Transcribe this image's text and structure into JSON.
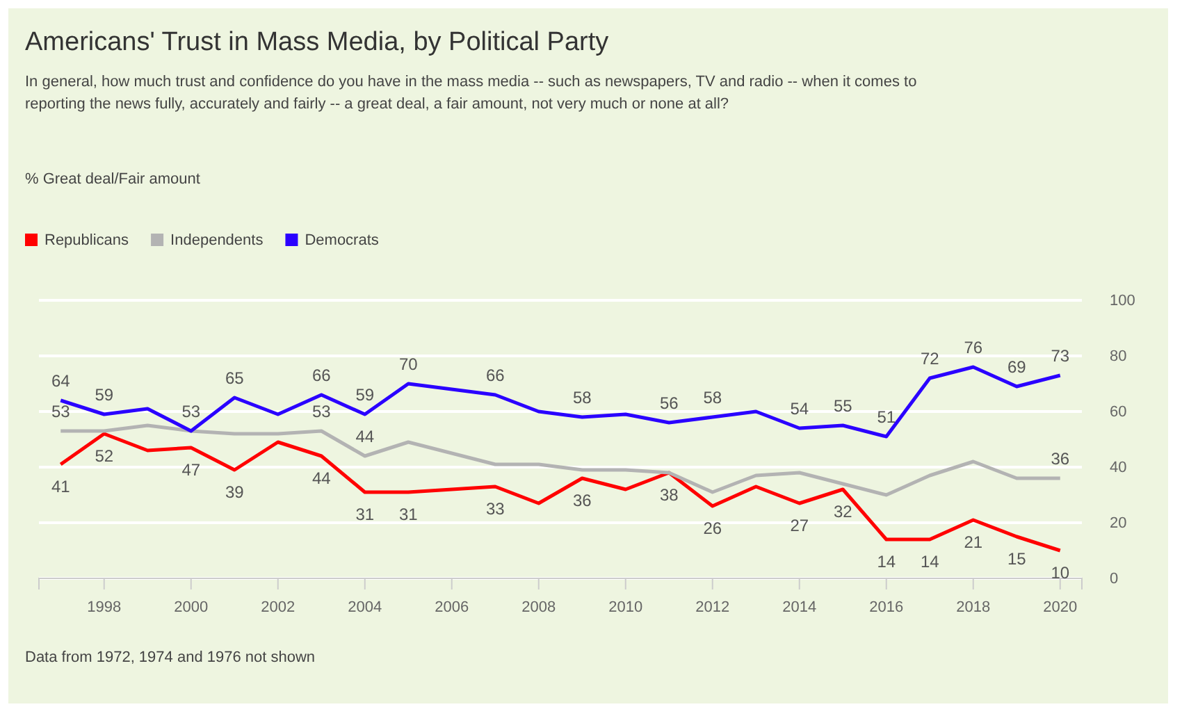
{
  "chart_data": {
    "type": "line",
    "title": "Americans' Trust in Mass Media, by Political Party",
    "subtitle": "In general, how much trust and confidence do you have in the mass media -- such as newspapers, TV and radio -- when it comes to reporting the news fully, accurately and fairly -- a great deal, a fair amount, not very much or none at all?",
    "annotations": [
      "% Great deal/Fair amount",
      "Data from 1972, 1974 and 1976 not shown"
    ],
    "x": [
      1997,
      1998,
      1999,
      2000,
      2001,
      2002,
      2003,
      2004,
      2005,
      2007,
      2008,
      2009,
      2010,
      2011,
      2012,
      2013,
      2014,
      2015,
      2016,
      2017,
      2018,
      2019,
      2020
    ],
    "series": [
      {
        "name": "Republicans",
        "color": "#ff0000",
        "values": [
          41,
          52,
          46,
          47,
          39,
          49,
          44,
          31,
          31,
          33,
          27,
          36,
          32,
          38,
          26,
          33,
          27,
          32,
          14,
          14,
          21,
          15,
          10
        ],
        "value_labels": [
          "41",
          "52",
          null,
          "47",
          "39",
          null,
          "44",
          "31",
          "31",
          "33",
          null,
          "36",
          null,
          "38",
          "26",
          null,
          "27",
          "32",
          "14",
          "14",
          "21",
          "15",
          "10"
        ]
      },
      {
        "name": "Independents",
        "color": "#b3b3b3",
        "values": [
          53,
          53,
          55,
          53,
          52,
          52,
          53,
          44,
          49,
          41,
          41,
          39,
          39,
          38,
          31,
          37,
          38,
          34,
          30,
          37,
          42,
          36,
          36
        ],
        "value_labels": [
          "53",
          null,
          null,
          null,
          null,
          null,
          "53",
          "44",
          null,
          null,
          null,
          null,
          null,
          null,
          null,
          null,
          null,
          null,
          null,
          null,
          null,
          null,
          "36"
        ]
      },
      {
        "name": "Democrats",
        "color": "#2a00ff",
        "values": [
          64,
          59,
          61,
          53,
          65,
          59,
          66,
          59,
          70,
          66,
          60,
          58,
          59,
          56,
          58,
          60,
          54,
          55,
          51,
          72,
          76,
          69,
          73
        ],
        "value_labels": [
          "64",
          "59",
          null,
          "53",
          "65",
          null,
          "66",
          "59",
          "70",
          "66",
          null,
          "58",
          null,
          "56",
          "58",
          null,
          "54",
          "55",
          "51",
          "72",
          "76",
          "69",
          "73"
        ]
      }
    ],
    "xlim": [
      1996.5,
      2020.5
    ],
    "xticks": [
      1998,
      2000,
      2002,
      2004,
      2006,
      2008,
      2010,
      2012,
      2014,
      2016,
      2018,
      2020
    ],
    "ylim": [
      0,
      100
    ],
    "yticks": [
      0,
      20,
      40,
      60,
      80,
      100
    ],
    "grid": "y",
    "legend": "top left",
    "marker": "none",
    "line_style": "solid"
  }
}
